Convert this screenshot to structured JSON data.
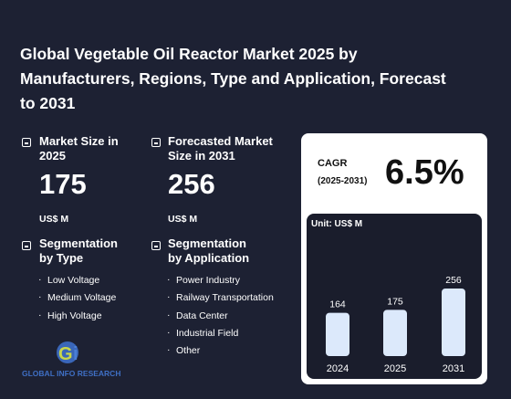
{
  "title": "Global Vegetable Oil Reactor Market 2025 by Manufacturers, Regions, Type and Application, Forecast to 2031",
  "market_size": {
    "label": "Market Size in 2025",
    "value": 175,
    "unit": "US$ M"
  },
  "forecast": {
    "label": "Forecasted Market Size in 2031",
    "value": 256,
    "unit": "US$ M"
  },
  "segmentation_type": {
    "label": "Segmentation by Type",
    "items": [
      "Low Voltage",
      "Medium Voltage",
      "High Voltage"
    ]
  },
  "segmentation_application": {
    "label": "Segmentation by Application",
    "items": [
      "Power Industry",
      "Railway Transportation",
      "Data Center",
      "Industrial Field",
      "Other"
    ]
  },
  "cagr": {
    "label": "CAGR",
    "period": "(2025-2031)",
    "value": "6.5%"
  },
  "chart_data": {
    "type": "bar",
    "unit_label": "Unit: US$ M",
    "categories": [
      "2024",
      "2025",
      "2031"
    ],
    "values": [
      164,
      175,
      256
    ],
    "color": "#dce9fb"
  },
  "logo": "GLOBAL INFO RESEARCH"
}
